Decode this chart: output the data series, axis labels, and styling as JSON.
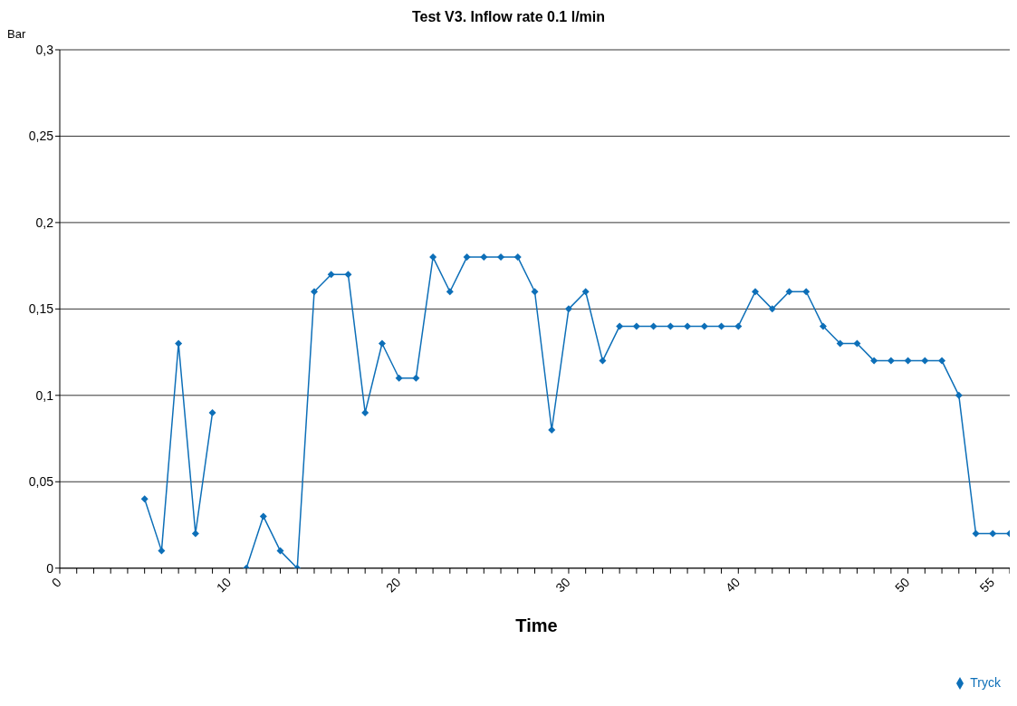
{
  "chart_data": {
    "type": "line",
    "title": "Test V3. Inflow rate 0.1 l/min",
    "xlabel": "Time",
    "ylabel": "Bar",
    "x": [
      5,
      6,
      7,
      8,
      9,
      10,
      11,
      12,
      13,
      14,
      15,
      16,
      17,
      18,
      19,
      20,
      21,
      22,
      23,
      24,
      25,
      26,
      27,
      28,
      29,
      30,
      31,
      32,
      33,
      34,
      35,
      36,
      37,
      38,
      39,
      40,
      41,
      42,
      43,
      44,
      45,
      46,
      47,
      48,
      49,
      50,
      51,
      52,
      53,
      54,
      55,
      56
    ],
    "series": [
      {
        "name": "Tryck",
        "color": "#0d6fb8",
        "values": [
          0.04,
          0.01,
          0.13,
          0.02,
          0.09,
          null,
          0,
          0.03,
          0.01,
          0,
          0.16,
          0.17,
          0.17,
          0.09,
          0.13,
          0.11,
          0.11,
          0.18,
          0.16,
          0.18,
          0.18,
          0.18,
          0.18,
          0.16,
          0.08,
          0.15,
          0.16,
          0.12,
          0.14,
          0.14,
          0.14,
          0.14,
          0.14,
          0.14,
          0.14,
          0.14,
          0.16,
          0.15,
          0.16,
          0.16,
          0.14,
          0.13,
          0.13,
          0.12,
          0.12,
          0.12,
          0.12,
          0.12,
          0.1,
          0.02,
          0.02,
          0.02
        ]
      }
    ],
    "xlim": [
      0,
      56
    ],
    "xticks": [
      0,
      {
        "value": 1,
        "label": null
      },
      {
        "value": 2,
        "label": null
      },
      {
        "value": 3,
        "label": null
      },
      {
        "value": 4,
        "label": null
      },
      {
        "value": 5,
        "label": null
      },
      {
        "value": 6,
        "label": null
      },
      {
        "value": 7,
        "label": null
      },
      {
        "value": 8,
        "label": null
      },
      {
        "value": 9,
        "label": null
      },
      10,
      {
        "value": 11,
        "label": null
      },
      {
        "value": 12,
        "label": null
      },
      {
        "value": 13,
        "label": null
      },
      {
        "value": 14,
        "label": null
      },
      {
        "value": 15,
        "label": null
      },
      {
        "value": 16,
        "label": null
      },
      {
        "value": 17,
        "label": null
      },
      {
        "value": 18,
        "label": null
      },
      {
        "value": 19,
        "label": null
      },
      20,
      {
        "value": 21,
        "label": null
      },
      {
        "value": 22,
        "label": null
      },
      {
        "value": 23,
        "label": null
      },
      {
        "value": 24,
        "label": null
      },
      {
        "value": 25,
        "label": null
      },
      {
        "value": 26,
        "label": null
      },
      {
        "value": 27,
        "label": null
      },
      {
        "value": 28,
        "label": null
      },
      {
        "value": 29,
        "label": null
      },
      30,
      {
        "value": 31,
        "label": null
      },
      {
        "value": 32,
        "label": null
      },
      {
        "value": 33,
        "label": null
      },
      {
        "value": 34,
        "label": null
      },
      {
        "value": 35,
        "label": null
      },
      {
        "value": 36,
        "label": null
      },
      {
        "value": 37,
        "label": null
      },
      {
        "value": 38,
        "label": null
      },
      {
        "value": 39,
        "label": null
      },
      40,
      {
        "value": 41,
        "label": null
      },
      {
        "value": 42,
        "label": null
      },
      {
        "value": 43,
        "label": null
      },
      {
        "value": 44,
        "label": null
      },
      {
        "value": 45,
        "label": null
      },
      {
        "value": 46,
        "label": null
      },
      {
        "value": 47,
        "label": null
      },
      {
        "value": 48,
        "label": null
      },
      {
        "value": 49,
        "label": null
      },
      50,
      {
        "value": 51,
        "label": null
      },
      {
        "value": 52,
        "label": null
      },
      {
        "value": 53,
        "label": null
      },
      {
        "value": 54,
        "label": null
      },
      55,
      {
        "value": 56,
        "label": null
      }
    ],
    "ylim": [
      0,
      0.3
    ],
    "yticks": [
      0,
      {
        "value": 0.05,
        "label": "0,05"
      },
      {
        "value": 0.1,
        "label": "0,1"
      },
      {
        "value": 0.15,
        "label": "0,15"
      },
      {
        "value": 0.2,
        "label": "0,2"
      },
      {
        "value": 0.25,
        "label": "0,25"
      },
      {
        "value": 0.3,
        "label": "0,3"
      }
    ],
    "grid": "y",
    "legend": "bottom right",
    "marker": "diamond",
    "line_style": "solid"
  }
}
